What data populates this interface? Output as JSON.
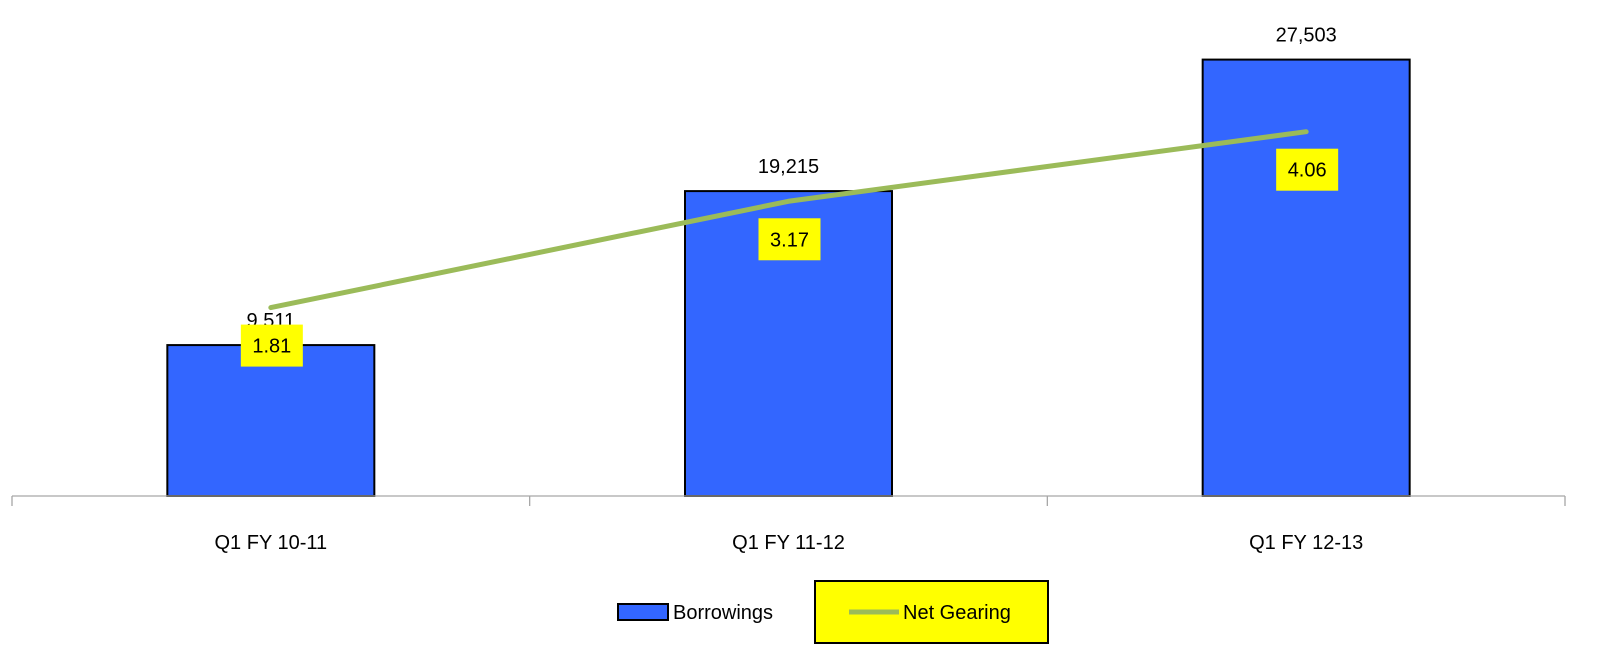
{
  "chart_data": {
    "type": "bar",
    "categories": [
      "Q1 FY 10-11",
      "Q1 FY 11-12",
      "Q1 FY 12-13"
    ],
    "series": [
      {
        "name": "Borrowings",
        "kind": "bar",
        "values": [
          9511,
          19215,
          27503
        ],
        "labels": [
          "9,511",
          "19,215",
          "27,503"
        ],
        "color": "#3366FF"
      },
      {
        "name": "Net Gearing",
        "kind": "line",
        "axis": "secondary",
        "values": [
          1.81,
          3.17,
          4.06
        ],
        "labels": [
          "1.81",
          "3.17",
          "4.06"
        ],
        "color": "#9BBB59",
        "label_background": "#FFFF00"
      }
    ],
    "legend_position": "bottom",
    "grid": false
  }
}
